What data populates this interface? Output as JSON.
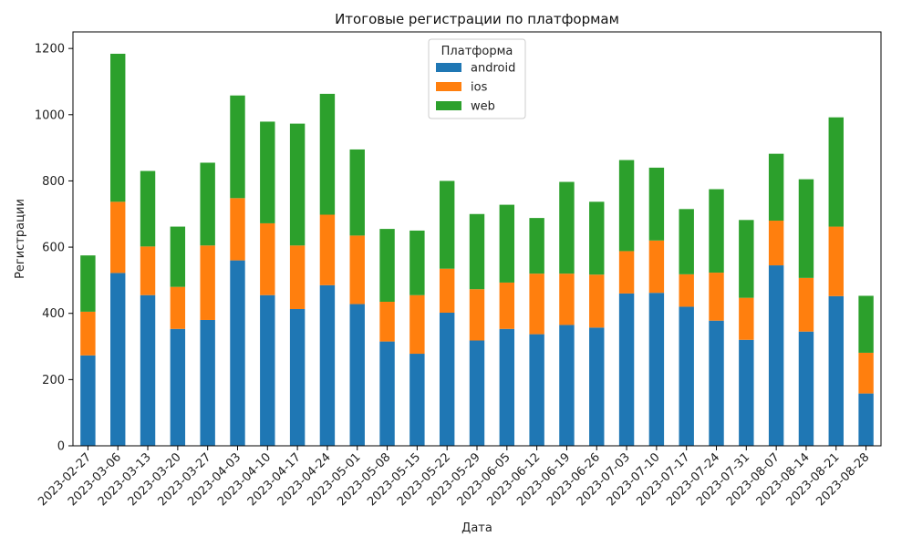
{
  "chart_data": {
    "type": "bar",
    "stacked": true,
    "title": "Итоговые регистрации по платформам",
    "xlabel": "Дата",
    "ylabel": "Регистрации",
    "ylim": [
      0,
      1250
    ],
    "yticks": [
      0,
      200,
      400,
      600,
      800,
      1000,
      1200
    ],
    "legend": {
      "title": "Платформа",
      "placement": "top-center"
    },
    "categories": [
      "2023-02-27",
      "2023-03-06",
      "2023-03-13",
      "2023-03-20",
      "2023-03-27",
      "2023-04-03",
      "2023-04-10",
      "2023-04-17",
      "2023-04-24",
      "2023-05-01",
      "2023-05-08",
      "2023-05-15",
      "2023-05-22",
      "2023-05-29",
      "2023-06-05",
      "2023-06-12",
      "2023-06-19",
      "2023-06-26",
      "2023-07-03",
      "2023-07-10",
      "2023-07-17",
      "2023-07-24",
      "2023-07-31",
      "2023-08-07",
      "2023-08-14",
      "2023-08-21",
      "2023-08-28"
    ],
    "series": [
      {
        "name": "android",
        "color": "#1f77b4",
        "values": [
          273,
          522,
          455,
          353,
          380,
          560,
          455,
          413,
          485,
          428,
          315,
          278,
          402,
          318,
          353,
          337,
          365,
          357,
          460,
          462,
          420,
          378,
          320,
          545,
          345,
          452,
          158
        ]
      },
      {
        "name": "ios",
        "color": "#ff7f0e",
        "values": [
          132,
          215,
          147,
          127,
          225,
          188,
          217,
          192,
          213,
          207,
          120,
          177,
          133,
          155,
          140,
          183,
          155,
          160,
          128,
          158,
          98,
          145,
          127,
          135,
          162,
          210,
          123
        ]
      },
      {
        "name": "web",
        "color": "#2ca02c",
        "values": [
          170,
          447,
          228,
          182,
          250,
          310,
          307,
          368,
          365,
          260,
          220,
          195,
          265,
          227,
          235,
          168,
          277,
          220,
          275,
          220,
          197,
          252,
          235,
          202,
          298,
          330,
          172
        ]
      }
    ]
  }
}
